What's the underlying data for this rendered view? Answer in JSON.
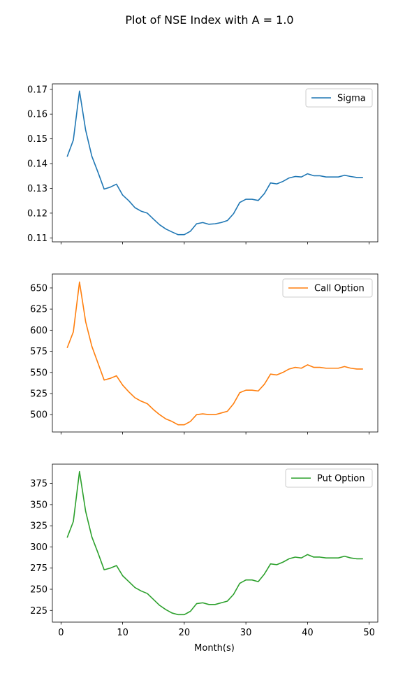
{
  "figure": {
    "title": "Plot of NSE Index with A = 1.0"
  },
  "chart_data": [
    {
      "type": "line",
      "series": [
        {
          "name": "Sigma",
          "color": "#1f77b4",
          "x": [
            1,
            2,
            3,
            4,
            5,
            6,
            7,
            8,
            9,
            10,
            11,
            12,
            13,
            14,
            15,
            16,
            17,
            18,
            19,
            20,
            21,
            22,
            23,
            24,
            25,
            26,
            27,
            28,
            29,
            30,
            31,
            32,
            33,
            34,
            35,
            36,
            37,
            38,
            39,
            40,
            41,
            42,
            43,
            44,
            45,
            46,
            47,
            48,
            49
          ],
          "values": [
            0.1428,
            0.1495,
            0.1693,
            0.1535,
            0.143,
            0.1365,
            0.1297,
            0.1305,
            0.1317,
            0.1273,
            0.125,
            0.1222,
            0.1208,
            0.12,
            0.1176,
            0.1153,
            0.1136,
            0.1124,
            0.1113,
            0.1113,
            0.1127,
            0.1157,
            0.1162,
            0.1155,
            0.1157,
            0.1162,
            0.117,
            0.1198,
            0.1243,
            0.1256,
            0.1256,
            0.1251,
            0.1279,
            0.1322,
            0.1318,
            0.1328,
            0.1342,
            0.1348,
            0.1346,
            0.1359,
            0.1351,
            0.1351,
            0.1346,
            0.1346,
            0.1346,
            0.1353,
            0.1348,
            0.1344,
            0.1344
          ]
        }
      ],
      "xlim": [
        -1.4,
        51.4
      ],
      "ylim": [
        0.1084,
        0.1722
      ],
      "yticks": [
        "0.11",
        "0.12",
        "0.13",
        "0.14",
        "0.15",
        "0.16",
        "0.17"
      ],
      "legend": "top-right",
      "grid": false
    },
    {
      "type": "line",
      "series": [
        {
          "name": "Call Option",
          "color": "#ff7f0e",
          "x": [
            1,
            2,
            3,
            4,
            5,
            6,
            7,
            8,
            9,
            10,
            11,
            12,
            13,
            14,
            15,
            16,
            17,
            18,
            19,
            20,
            21,
            22,
            23,
            24,
            25,
            26,
            27,
            28,
            29,
            30,
            31,
            32,
            33,
            34,
            35,
            36,
            37,
            38,
            39,
            40,
            41,
            42,
            43,
            44,
            45,
            46,
            47,
            48,
            49
          ],
          "values": [
            579,
            598,
            657,
            610,
            581,
            561,
            541,
            543,
            546,
            535,
            527,
            520,
            516,
            513,
            506,
            500,
            495,
            492,
            488,
            488,
            492,
            500,
            501,
            500,
            500,
            502,
            504,
            513,
            526,
            529,
            529,
            528,
            536,
            548,
            547,
            550,
            554,
            556,
            555,
            559,
            556,
            556,
            555,
            555,
            555,
            557,
            555,
            554,
            554
          ]
        }
      ],
      "xlim": [
        -1.4,
        51.4
      ],
      "ylim": [
        479.5,
        666.5
      ],
      "yticks": [
        "500",
        "525",
        "550",
        "575",
        "600",
        "625",
        "650"
      ],
      "legend": "top-right",
      "grid": false
    },
    {
      "type": "line",
      "series": [
        {
          "name": "Put Option",
          "color": "#2ca02c",
          "x": [
            1,
            2,
            3,
            4,
            5,
            6,
            7,
            8,
            9,
            10,
            11,
            12,
            13,
            14,
            15,
            16,
            17,
            18,
            19,
            20,
            21,
            22,
            23,
            24,
            25,
            26,
            27,
            28,
            29,
            30,
            31,
            32,
            33,
            34,
            35,
            36,
            37,
            38,
            39,
            40,
            41,
            42,
            43,
            44,
            45,
            46,
            47,
            48,
            49
          ],
          "values": [
            311,
            330,
            389,
            342,
            312,
            293,
            273,
            275,
            278,
            266,
            259,
            252,
            248,
            245,
            238,
            231,
            226,
            222,
            220,
            220,
            224,
            233,
            234,
            232,
            232,
            234,
            236,
            244,
            257,
            261,
            261,
            259,
            268,
            280,
            279,
            282,
            286,
            288,
            287,
            291,
            288,
            288,
            287,
            287,
            287,
            289,
            287,
            286,
            286
          ]
        }
      ],
      "xlim": [
        -1.4,
        51.4
      ],
      "ylim": [
        211.2,
        397.8
      ],
      "yticks": [
        "225",
        "250",
        "275",
        "300",
        "325",
        "350",
        "375"
      ],
      "xticks": [
        "0",
        "10",
        "20",
        "30",
        "40",
        "50"
      ],
      "xlabel": "Month(s)",
      "legend": "top-right",
      "grid": false
    }
  ]
}
